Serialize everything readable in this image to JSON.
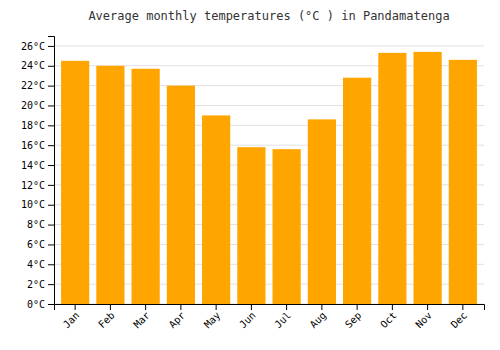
{
  "chart_data": {
    "type": "bar",
    "title": "Average monthly temperatures (°C ) in Pandamatenga",
    "categories": [
      "Jan",
      "Feb",
      "Mar",
      "Apr",
      "May",
      "Jun",
      "Jul",
      "Aug",
      "Sep",
      "Oct",
      "Nov",
      "Dec"
    ],
    "values": [
      24.5,
      24.0,
      23.7,
      22.0,
      19.0,
      15.8,
      15.6,
      18.6,
      22.8,
      25.3,
      25.4,
      24.6
    ],
    "color": "#FFA500",
    "ylim": [
      0,
      27
    ],
    "yticks": [
      {
        "value": 0,
        "label": "0°C"
      },
      {
        "value": 2,
        "label": "2°C"
      },
      {
        "value": 4,
        "label": "4°C"
      },
      {
        "value": 6,
        "label": "6°C"
      },
      {
        "value": 8,
        "label": "8°C"
      },
      {
        "value": 10,
        "label": "10°C"
      },
      {
        "value": 12,
        "label": "12°C"
      },
      {
        "value": 14,
        "label": "14°C"
      },
      {
        "value": 16,
        "label": "16°C"
      },
      {
        "value": 18,
        "label": "18°C"
      },
      {
        "value": 20,
        "label": "20°C"
      },
      {
        "value": 22,
        "label": "22°C"
      },
      {
        "value": 24,
        "label": "24°C"
      },
      {
        "value": 26,
        "label": "26°C"
      }
    ],
    "grid": true
  }
}
